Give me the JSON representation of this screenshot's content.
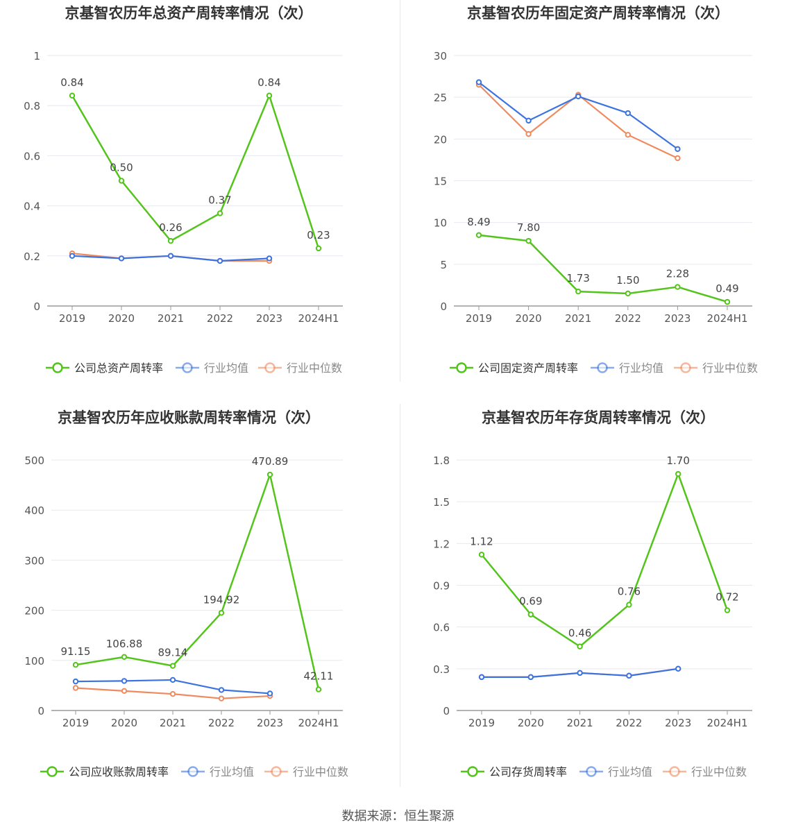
{
  "source_label": "数据来源：恒生聚源",
  "colors": {
    "company": "#52c41a",
    "avg": "#3b73e0",
    "median": "#f08a5d",
    "grid": "#e6e9ef",
    "axis": "#9a9a9a",
    "text": "#555555"
  },
  "chart_data": [
    {
      "type": "line",
      "title": "京基智农历年总资产周转率情况（次）",
      "categories": [
        "2019",
        "2020",
        "2021",
        "2022",
        "2023",
        "2024H1"
      ],
      "ylim": [
        0,
        1
      ],
      "yticks": [
        0,
        0.2,
        0.4,
        0.6,
        0.8,
        1
      ],
      "ytick_labels": [
        "0",
        "0.2",
        "0.4",
        "0.6",
        "0.8",
        "1"
      ],
      "series": [
        {
          "name": "公司总资产周转率",
          "key": "company",
          "values": [
            0.84,
            0.5,
            0.26,
            0.37,
            0.84,
            0.23
          ],
          "labels": [
            "0.84",
            "0.50",
            "0.26",
            "0.37",
            "0.84",
            "0.23"
          ]
        },
        {
          "name": "行业均值",
          "key": "avg",
          "values": [
            0.2,
            0.19,
            0.2,
            0.18,
            0.19,
            null
          ]
        },
        {
          "name": "行业中位数",
          "key": "median",
          "values": [
            0.21,
            0.19,
            0.2,
            0.18,
            0.18,
            null
          ]
        }
      ]
    },
    {
      "type": "line",
      "title": "京基智农历年固定资产周转率情况（次）",
      "categories": [
        "2019",
        "2020",
        "2021",
        "2022",
        "2023",
        "2024H1"
      ],
      "ylim": [
        0,
        30
      ],
      "yticks": [
        0,
        5,
        10,
        15,
        20,
        25,
        30
      ],
      "ytick_labels": [
        "0",
        "5",
        "10",
        "15",
        "20",
        "25",
        "30"
      ],
      "series": [
        {
          "name": "公司固定资产周转率",
          "key": "company",
          "values": [
            8.49,
            7.8,
            1.73,
            1.5,
            2.28,
            0.49
          ],
          "labels": [
            "8.49",
            "7.80",
            "1.73",
            "1.50",
            "2.28",
            "0.49"
          ]
        },
        {
          "name": "行业均值",
          "key": "avg",
          "values": [
            26.8,
            22.2,
            25.1,
            23.1,
            18.8,
            null
          ]
        },
        {
          "name": "行业中位数",
          "key": "median",
          "values": [
            26.5,
            20.6,
            25.3,
            20.5,
            17.7,
            null
          ]
        }
      ]
    },
    {
      "type": "line",
      "title": "京基智农历年应收账款周转率情况（次）",
      "categories": [
        "2019",
        "2020",
        "2021",
        "2022",
        "2023",
        "2024H1"
      ],
      "ylim": [
        0,
        500
      ],
      "yticks": [
        0,
        100,
        200,
        300,
        400,
        500
      ],
      "ytick_labels": [
        "0",
        "100",
        "200",
        "300",
        "400",
        "500"
      ],
      "series": [
        {
          "name": "公司应收账款周转率",
          "key": "company",
          "values": [
            91.15,
            106.88,
            89.14,
            194.92,
            470.89,
            42.11
          ],
          "labels": [
            "91.15",
            "106.88",
            "89.14",
            "194.92",
            "470.89",
            "42.11"
          ]
        },
        {
          "name": "行业均值",
          "key": "avg",
          "values": [
            58,
            59,
            61,
            41,
            34,
            null
          ]
        },
        {
          "name": "行业中位数",
          "key": "median",
          "values": [
            45,
            39,
            33,
            24,
            29,
            null
          ]
        }
      ]
    },
    {
      "type": "line",
      "title": "京基智农历年存货周转率情况（次）",
      "categories": [
        "2019",
        "2020",
        "2021",
        "2022",
        "2023",
        "2024H1"
      ],
      "ylim": [
        0,
        1.8
      ],
      "yticks": [
        0,
        0.3,
        0.6,
        0.9,
        1.2,
        1.5,
        1.8
      ],
      "ytick_labels": [
        "0",
        "0.3",
        "0.6",
        "0.9",
        "1.2",
        "1.5",
        "1.8"
      ],
      "series": [
        {
          "name": "公司存货周转率",
          "key": "company",
          "values": [
            1.12,
            0.69,
            0.46,
            0.76,
            1.7,
            0.72
          ],
          "labels": [
            "1.12",
            "0.69",
            "0.46",
            "0.76",
            "1.70",
            "0.72"
          ]
        },
        {
          "name": "行业均值",
          "key": "avg",
          "values": [
            0.24,
            0.24,
            0.27,
            0.25,
            0.3,
            null
          ]
        },
        {
          "name": "行业中位数",
          "key": "median",
          "values": [
            0.24,
            0.24,
            0.27,
            0.25,
            0.3,
            null
          ]
        }
      ]
    }
  ]
}
